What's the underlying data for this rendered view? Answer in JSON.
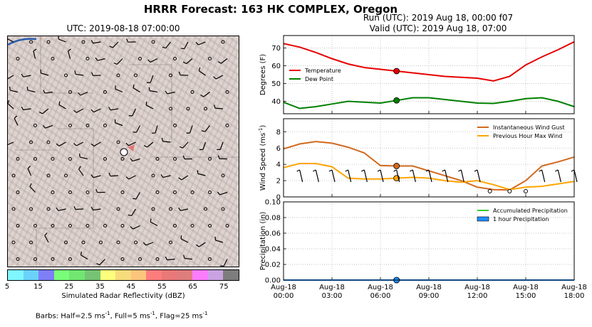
{
  "title": "HRRR Forecast: 163 HK COMPLEX, Oregon",
  "map": {
    "title": "UTC: 2019-08-18 07:00:00",
    "colorbar": {
      "label": "Simulated Radar Reflectivity (dBZ)",
      "ticks": [
        "5",
        "15",
        "25",
        "35",
        "45",
        "55",
        "65",
        "75"
      ],
      "colors": [
        "#7ff7ff",
        "#6ad2fa",
        "#7e7ef7",
        "#7afd7a",
        "#71e671",
        "#75c475",
        "#fefe7d",
        "#f6dc7a",
        "#fcc57e",
        "#fd7d7d",
        "#e97878",
        "#df7d7d",
        "#fb7dfc",
        "#c8a2e1",
        "#7d7d7d"
      ]
    },
    "barbs_note": {
      "prefix": "Barbs: Half=2.5 ms",
      "sup": "-1",
      "mid1": ", Full=5 ms",
      "mid2": ", Flag=25 ms"
    }
  },
  "header": {
    "run": "Run (UTC): 2019 Aug 18, 00:00 f07",
    "valid": "Valid (UTC): 2019 Aug 18, 07:00"
  },
  "chart_data": [
    {
      "type": "line",
      "ylabel": "Degrees (F)",
      "ylim": [
        33,
        77
      ],
      "yticks": [
        40,
        50,
        60,
        70
      ],
      "grid": true,
      "legend": "left",
      "x": [
        0,
        1,
        2,
        3,
        4,
        5,
        6,
        7,
        8,
        9,
        10,
        11,
        12,
        13,
        14,
        15,
        16,
        17,
        18
      ],
      "series": [
        {
          "name": "Temperature",
          "color": "#e60000",
          "values": [
            72.5,
            70.5,
            67.5,
            64,
            61,
            59,
            58,
            57,
            56,
            55,
            54,
            53.5,
            53,
            51.5,
            54,
            60.5,
            65,
            69,
            73.5
          ]
        },
        {
          "name": "Dew Point",
          "color": "#008000",
          "values": [
            39.5,
            36,
            37,
            38.5,
            40,
            39.5,
            39,
            40.5,
            42,
            42,
            41,
            40,
            39,
            38.8,
            40,
            41.5,
            42,
            40,
            37
          ]
        }
      ],
      "marker_index": 7
    },
    {
      "type": "line",
      "ylabel": "Wind Speed (ms",
      "ylabel_sup": "-1",
      "ylim": [
        0,
        9.6
      ],
      "yticks": [
        0,
        2,
        4,
        6,
        8
      ],
      "grid": true,
      "legend": "top-right",
      "x": [
        0,
        1,
        2,
        3,
        4,
        5,
        6,
        7,
        8,
        9,
        10,
        11,
        12,
        13,
        14,
        15,
        16,
        17,
        18
      ],
      "series": [
        {
          "name": "Instantaneous Wind Gust",
          "color": "#d2691e",
          "values": [
            5.9,
            6.5,
            6.8,
            6.6,
            6.1,
            5.4,
            3.85,
            3.8,
            3.8,
            3.2,
            2.6,
            2.0,
            1.2,
            0.9,
            0.85,
            2.0,
            3.8,
            4.3,
            4.9
          ]
        },
        {
          "name": "Previous Hour Max Wind",
          "color": "#ffa500",
          "values": [
            3.6,
            4.1,
            4.1,
            3.7,
            2.3,
            2.2,
            2.2,
            2.3,
            2.4,
            2.3,
            2.0,
            1.8,
            2.0,
            1.5,
            0.9,
            1.2,
            1.3,
            1.6,
            1.9
          ]
        }
      ],
      "marker_index": 7
    },
    {
      "type": "line",
      "ylabel": "Precipitation (in)",
      "ylim": [
        0,
        0.1
      ],
      "yticks": [
        "0.00",
        "0.02",
        "0.04",
        "0.06",
        "0.08",
        "0.10"
      ],
      "grid": true,
      "legend": "top-right",
      "xtick_labels": [
        [
          "Aug-18",
          "00:00"
        ],
        [
          "Aug-18",
          "03:00"
        ],
        [
          "Aug-18",
          "06:00"
        ],
        [
          "Aug-18",
          "09:00"
        ],
        [
          "Aug-18",
          "12:00"
        ],
        [
          "Aug-18",
          "15:00"
        ],
        [
          "Aug-18",
          "18:00"
        ]
      ],
      "x": [
        0,
        1,
        2,
        3,
        4,
        5,
        6,
        7,
        8,
        9,
        10,
        11,
        12,
        13,
        14,
        15,
        16,
        17,
        18
      ],
      "series": [
        {
          "name": "Accumulated Precipitation",
          "color": "#32cd32",
          "values": [
            0,
            0,
            0,
            0,
            0,
            0,
            0,
            0,
            0,
            0,
            0,
            0,
            0,
            0,
            0,
            0,
            0,
            0,
            0
          ]
        },
        {
          "name": "1 hour Precipitation",
          "color": "#1e90ff",
          "values": [
            0,
            0,
            0,
            0,
            0,
            0,
            0,
            0,
            0,
            0,
            0,
            0,
            0,
            0,
            0,
            0,
            0,
            0,
            0
          ]
        }
      ],
      "marker_index": 7
    }
  ]
}
